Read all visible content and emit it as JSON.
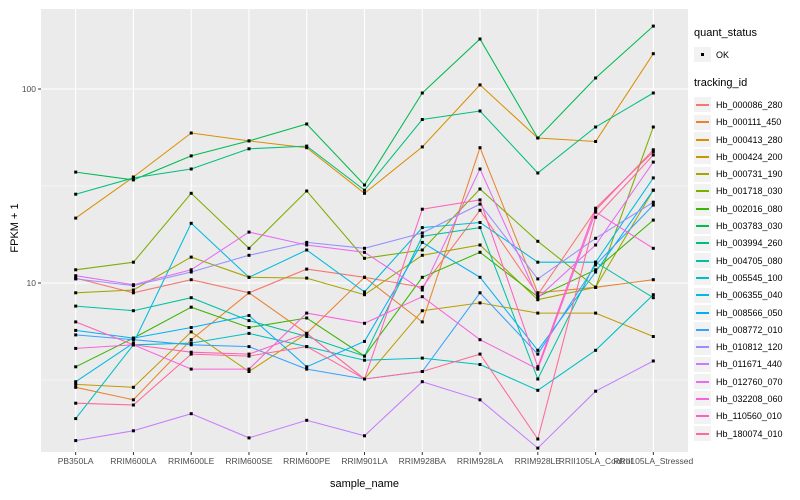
{
  "figure": {
    "background": "#FFFFFF",
    "panel_background": "#EBEBEB",
    "gridline_color": "#FFFFFF",
    "axis_text_color": "#4D4D4D",
    "tick_color": "#333333",
    "point_color": "#000000"
  },
  "chart_data": {
    "type": "line",
    "title": "",
    "xlabel": "sample_name",
    "ylabel": "FPKM + 1",
    "y_scale": "log10",
    "ylim": [
      1.3,
      260
    ],
    "grid": "on",
    "legend_position": "right",
    "y_axis_ticks": [
      "100",
      "10"
    ],
    "y_tick_values": [
      100,
      10
    ],
    "y_minor_values": [
      31.62,
      3.162
    ],
    "categories": [
      "PB350LA",
      "RRIM600LA",
      "RRIM600LE",
      "RRIM600SE",
      "RRIM600PE",
      "RRIM901LA",
      "RRIM928BA",
      "RRIM928LA",
      "RRIM928LE",
      "RRII105LA_Control",
      "RRII105LA_Stressed"
    ],
    "legend": {
      "quant_status_title": "quant_status",
      "ok_label": "OK",
      "tracking_id_title": "tracking_id"
    },
    "series": [
      {
        "name": "Hb_000086_280",
        "color": "#F8766D",
        "values": [
          10.6,
          8.9,
          10.4,
          8.9,
          11.8,
          10.7,
          9.5,
          23.7,
          8.7,
          23.7,
          48.6
        ]
      },
      {
        "name": "Hb_000111_450",
        "color": "#EA8331",
        "values": [
          2.9,
          2.5,
          5.1,
          8.9,
          5.5,
          10.7,
          6.3,
          49.8,
          8.9,
          9.5,
          10.4
        ]
      },
      {
        "name": "Hb_000413_280",
        "color": "#D89000",
        "values": [
          21.6,
          35.2,
          59.3,
          54,
          49.8,
          29,
          50.3,
          105,
          55.9,
          53.6,
          152
        ]
      },
      {
        "name": "Hb_000424_200",
        "color": "#C09B00",
        "values": [
          3.0,
          2.9,
          5.6,
          3.5,
          5.5,
          3.2,
          7.2,
          7.9,
          7.0,
          7.0,
          5.3
        ]
      },
      {
        "name": "Hb_000731_190",
        "color": "#A3A500",
        "values": [
          8.9,
          9.2,
          13.6,
          10.7,
          10.6,
          8.7,
          13.9,
          15.7,
          8.2,
          9.5,
          30.1
        ]
      },
      {
        "name": "Hb_001718_030",
        "color": "#7CAE00",
        "values": [
          11.7,
          12.8,
          29,
          15.1,
          29.8,
          13.4,
          14.8,
          30.5,
          16.4,
          9.5,
          63.7
        ]
      },
      {
        "name": "Hb_002016_080",
        "color": "#39B600",
        "values": [
          3.7,
          5.2,
          7.5,
          5.9,
          6.6,
          4.2,
          10.7,
          14.4,
          8.5,
          11.7,
          21.1
        ]
      },
      {
        "name": "Hb_003783_030",
        "color": "#00BB4E",
        "values": [
          37.3,
          34,
          45.2,
          54,
          66,
          32,
          95.4,
          181,
          55.9,
          114,
          211
        ]
      },
      {
        "name": "Hb_003994_260",
        "color": "#00BF7D",
        "values": [
          28.7,
          34.8,
          38.7,
          49.2,
          50.8,
          30.1,
          69.6,
          77,
          36.9,
          63.7,
          95.4
        ]
      },
      {
        "name": "Hb_004705_080",
        "color": "#00C1A3",
        "values": [
          7.6,
          7.2,
          8.4,
          6.4,
          5.3,
          4.2,
          17.4,
          19.3,
          3.2,
          12.8,
          8.4
        ]
      },
      {
        "name": "Hb_005545_100",
        "color": "#00BFC4",
        "values": [
          2.0,
          4.8,
          4.9,
          5.5,
          4.7,
          4.0,
          4.1,
          3.8,
          2.8,
          4.5,
          8.7
        ]
      },
      {
        "name": "Hb_006355_040",
        "color": "#00BAE0",
        "values": [
          3.1,
          4.9,
          20.3,
          10.7,
          14.8,
          9.0,
          19.3,
          20.5,
          12.8,
          12.8,
          34.8
        ]
      },
      {
        "name": "Hb_008566_050",
        "color": "#00B0F6",
        "values": [
          5.7,
          5.2,
          5.9,
          6.8,
          3.7,
          5.0,
          16.2,
          10.7,
          4.5,
          11.4,
          30.1
        ]
      },
      {
        "name": "Hb_008772_010",
        "color": "#35A2FF",
        "values": [
          5.4,
          5.1,
          4.8,
          4.7,
          3.6,
          3.2,
          3.5,
          8.9,
          4.3,
          12.4,
          25.2
        ]
      },
      {
        "name": "Hb_010812_120",
        "color": "#9590FF",
        "values": [
          10.5,
          9.7,
          11.4,
          13.9,
          16.2,
          15.1,
          18.1,
          25.5,
          10.5,
          17,
          26.1
        ]
      },
      {
        "name": "Hb_011671_440",
        "color": "#C77CFF",
        "values": [
          1.54,
          1.73,
          2.12,
          1.59,
          1.96,
          1.63,
          3.1,
          2.5,
          1.41,
          2.77,
          3.96
        ]
      },
      {
        "name": "Hb_012760_070",
        "color": "#E76BF3",
        "values": [
          10.9,
          9.8,
          11.7,
          18.3,
          15.7,
          14.4,
          9.2,
          38.7,
          8.4,
          15.7,
          42
        ]
      },
      {
        "name": "Hb_032208_060",
        "color": "#FA62DB",
        "values": [
          4.6,
          4.8,
          3.6,
          3.6,
          7.0,
          6.2,
          8.5,
          5.1,
          3.6,
          23.2,
          15.1
        ]
      },
      {
        "name": "Hb_110560_010",
        "color": "#FF62BC",
        "values": [
          6.3,
          4.8,
          4.4,
          4.3,
          5.5,
          3.2,
          24,
          26.8,
          3.7,
          24.3,
          47.5
        ]
      },
      {
        "name": "Hb_180074_010",
        "color": "#FF6A98",
        "values": [
          2.4,
          2.35,
          4.3,
          4.2,
          4.7,
          3.2,
          3.5,
          4.3,
          1.57,
          21.8,
          45.7
        ]
      }
    ]
  }
}
